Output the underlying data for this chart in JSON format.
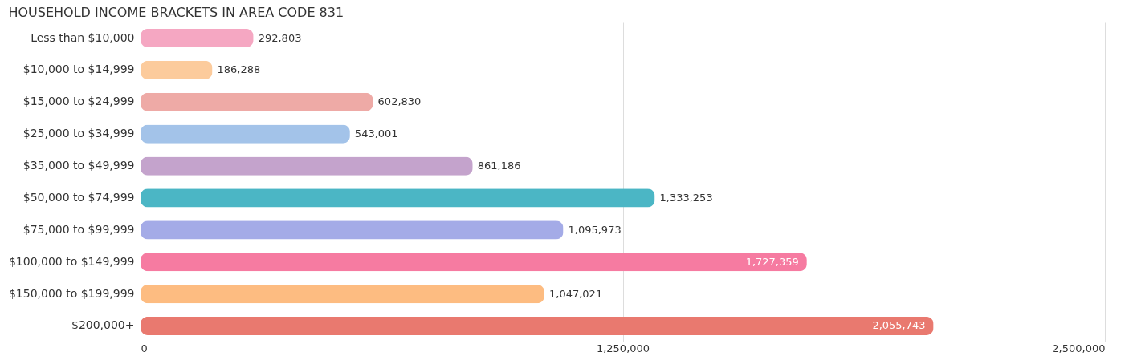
{
  "chart_data": {
    "type": "bar",
    "orientation": "horizontal",
    "title": "HOUSEHOLD INCOME BRACKETS IN AREA CODE 831",
    "categories": [
      "Less than $10,000",
      "$10,000 to $14,999",
      "$15,000 to $24,999",
      "$25,000 to $34,999",
      "$35,000 to $49,999",
      "$50,000 to $74,999",
      "$75,000 to $99,999",
      "$100,000 to $149,999",
      "$150,000 to $199,999",
      "$200,000+"
    ],
    "values": [
      292803,
      186288,
      602830,
      543001,
      861186,
      1333253,
      1095973,
      1727359,
      1047021,
      2055743
    ],
    "colors": [
      "#f5a7c2",
      "#fccb9c",
      "#eeaaa6",
      "#a3c3e9",
      "#c4a3cc",
      "#4bb6c5",
      "#a4abe7",
      "#f67ba1",
      "#fdbc81",
      "#e9796f"
    ],
    "value_labels": [
      "292,803",
      "186,288",
      "602,830",
      "543,001",
      "861,186",
      "1,333,253",
      "1,095,973",
      "1,727,359",
      "1,047,021",
      "2,055,743"
    ],
    "xlim": [
      0,
      2500000
    ],
    "xticks": [
      0,
      {
        "value": 1250000,
        "label": "1,250,000"
      },
      {
        "value": 2500000,
        "label": "2,500,000"
      }
    ],
    "grid": "x"
  }
}
